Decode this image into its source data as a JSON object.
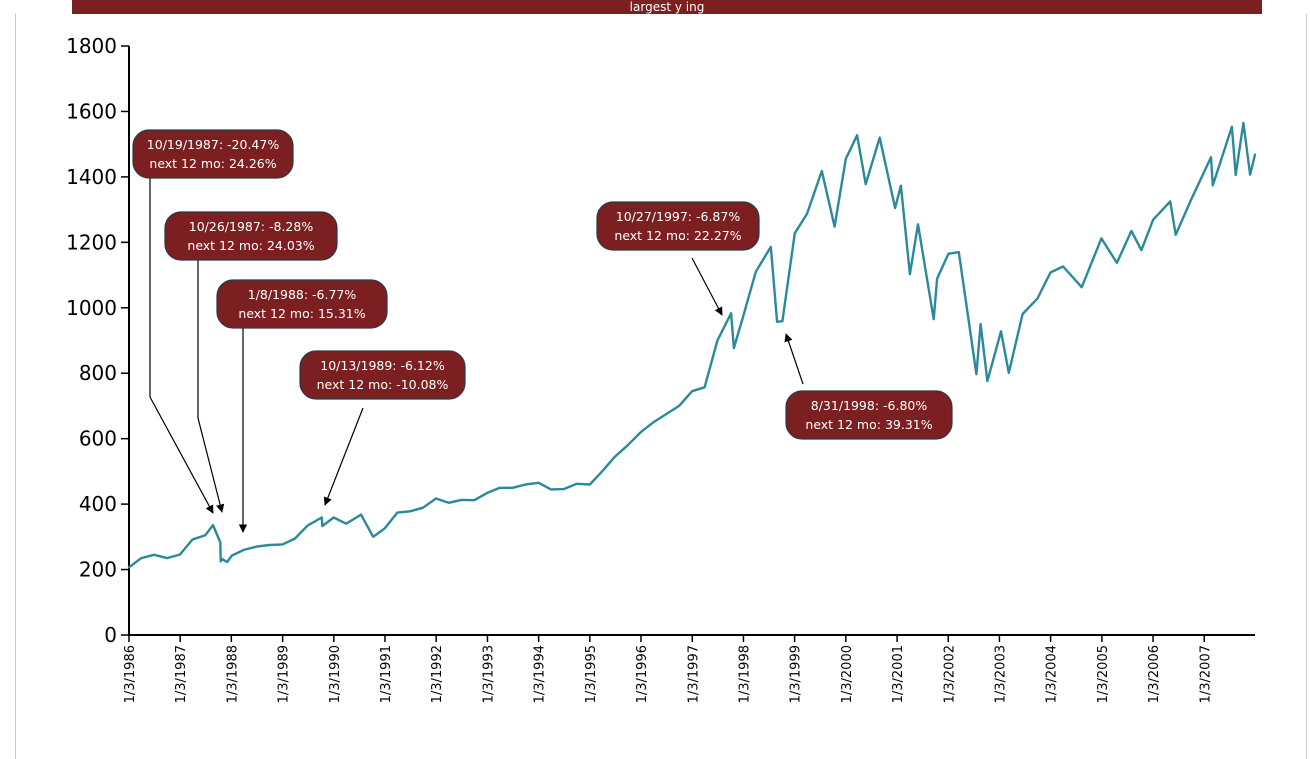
{
  "header": {
    "title_fragment": "largest y                    ing"
  },
  "colors": {
    "line": "#2a8a9c",
    "callout_fill": "#7b1f20",
    "callout_border": "#2a3a4a",
    "title_bar": "#7b1f20"
  },
  "chart_data": {
    "type": "line",
    "title": "",
    "xlabel": "",
    "ylabel": "",
    "ylim": [
      0,
      1800
    ],
    "y_ticks": [
      "0",
      "200",
      "400",
      "600",
      "800",
      "1000",
      "1200",
      "1400",
      "1600",
      "1800"
    ],
    "x_ticks": [
      "1/3/1986",
      "1/3/1987",
      "1/3/1988",
      "1/3/1989",
      "1/3/1990",
      "1/3/1991",
      "1/3/1992",
      "1/3/1993",
      "1/3/1994",
      "1/3/1995",
      "1/3/1996",
      "1/3/1997",
      "1/3/1998",
      "1/3/1999",
      "1/3/2000",
      "1/3/2001",
      "1/3/2002",
      "1/3/2003",
      "1/3/2004",
      "1/3/2005",
      "1/3/2006",
      "1/3/2007"
    ],
    "grid": false,
    "legend": "none",
    "series": [
      {
        "x": [
          "1986-01-03",
          "1986-04-01",
          "1986-07-01",
          "1986-10-01",
          "1987-01-02",
          "1987-04-01",
          "1987-07-01",
          "1987-08-25",
          "1987-10-16",
          "1987-10-19",
          "1987-10-26",
          "1987-12-04",
          "1988-01-08",
          "1988-04-01",
          "1988-07-01",
          "1988-10-01",
          "1989-01-03",
          "1989-04-01",
          "1989-07-01",
          "1989-10-09",
          "1989-10-13",
          "1990-01-02",
          "1990-04-01",
          "1990-07-16",
          "1990-10-11",
          "1991-01-02",
          "1991-04-01",
          "1991-07-01",
          "1991-10-01",
          "1992-01-02",
          "1992-04-01",
          "1992-07-01",
          "1992-10-01",
          "1993-01-04",
          "1993-04-01",
          "1993-07-01",
          "1993-10-01",
          "1994-01-03",
          "1994-04-01",
          "1994-07-01",
          "1994-10-01",
          "1995-01-03",
          "1995-04-01",
          "1995-07-01",
          "1995-10-01",
          "1996-01-02",
          "1996-04-01",
          "1996-07-01",
          "1996-10-01",
          "1997-01-02",
          "1997-04-01",
          "1997-07-01",
          "1997-10-07",
          "1997-10-27",
          "1998-01-02",
          "1998-04-01",
          "1998-07-17",
          "1998-08-31",
          "1998-10-08",
          "1999-01-04",
          "1999-04-01",
          "1999-07-16",
          "1999-10-15",
          "2000-01-03",
          "2000-03-24",
          "2000-05-24",
          "2000-09-01",
          "2000-12-20",
          "2001-01-30",
          "2001-04-04",
          "2001-06-01",
          "2001-09-21",
          "2001-10-15",
          "2002-01-04",
          "2002-03-19",
          "2002-07-23",
          "2002-08-22",
          "2002-10-09",
          "2003-01-14",
          "2003-03-11",
          "2003-06-17",
          "2003-10-01",
          "2004-01-02",
          "2004-04-01",
          "2004-08-12",
          "2004-12-30",
          "2005-04-20",
          "2005-08-01",
          "2005-10-12",
          "2006-01-03",
          "2006-05-05",
          "2006-06-13",
          "2006-10-02",
          "2007-02-20",
          "2007-03-05",
          "2007-07-19",
          "2007-08-15",
          "2007-10-09",
          "2007-11-26",
          "2007-12-31"
        ],
        "values": [
          207,
          235,
          245,
          235,
          246,
          292,
          305,
          336,
          283,
          225,
          233,
          223,
          243,
          260,
          270,
          275,
          277,
          295,
          335,
          359,
          333,
          359,
          340,
          368,
          300,
          326,
          374,
          378,
          389,
          417,
          404,
          413,
          412,
          435,
          450,
          450,
          460,
          465,
          445,
          446,
          462,
          460,
          500,
          545,
          580,
          620,
          650,
          675,
          700,
          745,
          757,
          900,
          983,
          877,
          975,
          1110,
          1186,
          957,
          959,
          1228,
          1287,
          1418,
          1248,
          1455,
          1527,
          1378,
          1520,
          1305,
          1373,
          1103,
          1255,
          965,
          1089,
          1165,
          1170,
          797,
          950,
          776,
          928,
          801,
          981,
          1028,
          1108,
          1126,
          1063,
          1212,
          1137,
          1235,
          1176,
          1269,
          1325,
          1223,
          1331,
          1460,
          1374,
          1553,
          1406,
          1565,
          1407,
          1468
        ]
      }
    ],
    "annotations": [
      {
        "line1": "10/19/1987: -20.47%",
        "line2": "next 12 mo: 24.26%"
      },
      {
        "line1": "10/26/1987: -8.28%",
        "line2": "next 12 mo: 24.03%"
      },
      {
        "line1": "1/8/1988: -6.77%",
        "line2": "next 12 mo: 15.31%"
      },
      {
        "line1": "10/13/1989: -6.12%",
        "line2": "next 12 mo: -10.08%"
      },
      {
        "line1": "10/27/1997: -6.87%",
        "line2": "next 12 mo: 22.27%"
      },
      {
        "line1": "8/31/1998: -6.80%",
        "line2": "next 12 mo: 39.31%"
      }
    ]
  }
}
